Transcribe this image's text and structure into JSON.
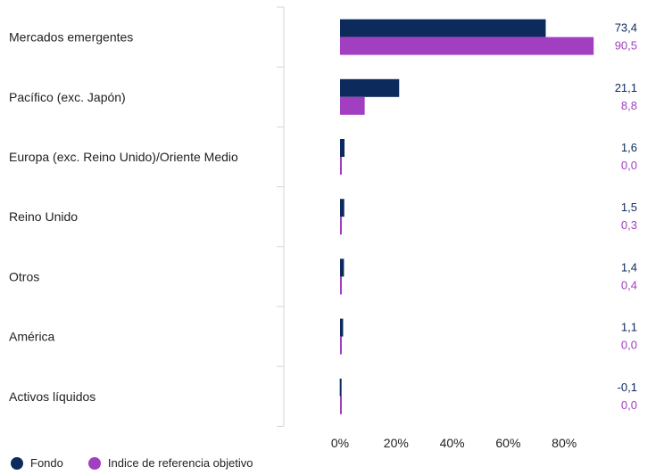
{
  "chart_data": {
    "type": "bar",
    "orientation": "horizontal",
    "categories": [
      "Mercados emergentes",
      "Pacífico (exc. Japón)",
      "Europa (exc. Reino Unido)/Oriente Medio",
      "Reino Unido",
      "Otros",
      "América",
      "Activos líquidos"
    ],
    "series": [
      {
        "name": "Fondo",
        "color": "#0d2a5c",
        "values": [
          73.4,
          21.1,
          1.6,
          1.5,
          1.4,
          1.1,
          -0.1
        ],
        "labels": [
          "73,4",
          "21,1",
          "1,6",
          "1,5",
          "1,4",
          "1,1",
          "-0,1"
        ]
      },
      {
        "name": "Indice de referencia objetivo",
        "color": "#a23fc0",
        "values": [
          90.5,
          8.8,
          0.0,
          0.3,
          0.4,
          0.0,
          0.0
        ],
        "labels": [
          "90,5",
          "8,8",
          "0,0",
          "0,3",
          "0,4",
          "0,0",
          "0,0"
        ]
      }
    ],
    "x_ticks": [
      0,
      20,
      40,
      60,
      80
    ],
    "x_tick_labels": [
      "0%",
      "20%",
      "40%",
      "60%",
      "80%"
    ],
    "xlim": [
      -20,
      100
    ],
    "grid": false,
    "legend_position": "bottom-left"
  }
}
